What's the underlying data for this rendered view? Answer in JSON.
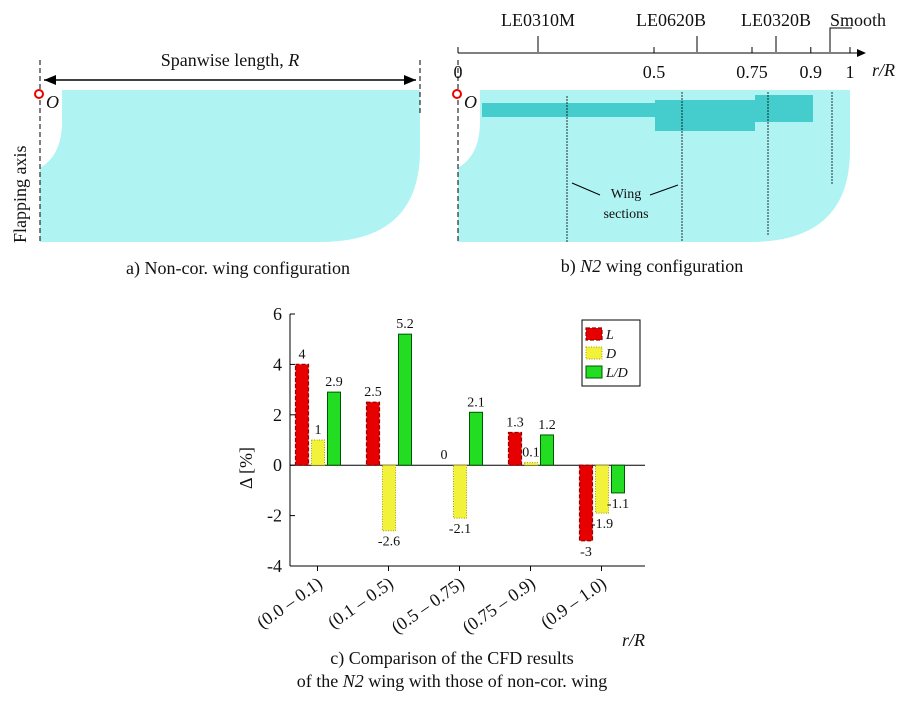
{
  "panel_a": {
    "span_label": [
      "Spanwise length, ",
      "R"
    ],
    "origin": "O",
    "axis_label": "Flapping axis",
    "caption": "a) Non-cor. wing configuration"
  },
  "panel_b": {
    "airfoils": [
      "LE0310M",
      "LE0620B",
      "LE0320B",
      "Smooth"
    ],
    "ticks": [
      0,
      0.5,
      0.75,
      0.9,
      1
    ],
    "axis_label": "r/R",
    "origin": "O",
    "sections_label": [
      "Wing",
      "sections"
    ],
    "caption": [
      "b) ",
      "N2",
      " wing configuration"
    ]
  },
  "chart_data": {
    "type": "bar",
    "categories": [
      "(0.0 – 0.1)",
      "(0.1 – 0.5)",
      "(0.5 – 0.75)",
      "(0.75 – 0.9)",
      "(0.9 – 1.0)"
    ],
    "series": [
      {
        "name": "L",
        "color": "#e60000",
        "values": [
          4,
          2.5,
          0,
          1.3,
          -3
        ]
      },
      {
        "name": "D",
        "color": "#f2f23a",
        "values": [
          1,
          -2.6,
          -2.1,
          0.1,
          -1.9
        ]
      },
      {
        "name": "L/D",
        "color": "#22dd22",
        "values": [
          2.9,
          5.2,
          2.1,
          1.2,
          -1.1
        ]
      }
    ],
    "ylim": [
      -4,
      6
    ],
    "yticks": [
      -4,
      -2,
      0,
      2,
      4,
      6
    ],
    "ylabel": "Δ [%]",
    "xlabel": "r/R",
    "legend": "upper right",
    "caption": [
      [
        "c) Comparison of the CFD results"
      ],
      [
        "of the ",
        "N2",
        " wing with those of non-cor. wing"
      ]
    ]
  }
}
